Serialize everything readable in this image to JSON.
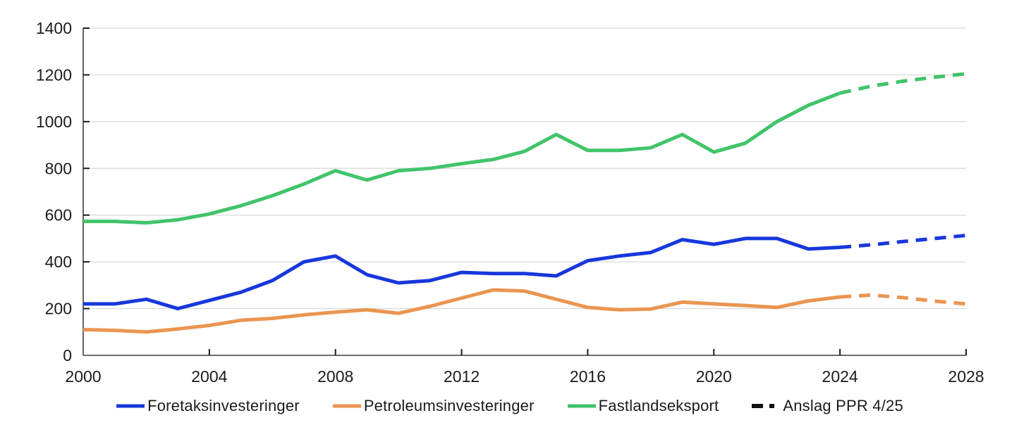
{
  "chart_data": {
    "type": "line",
    "title": "",
    "xlabel": "",
    "ylabel": "",
    "xlim": [
      2000,
      2028
    ],
    "ylim": [
      0,
      1400
    ],
    "x_ticks": [
      2000,
      2004,
      2008,
      2012,
      2016,
      2020,
      2024,
      2028
    ],
    "y_ticks": [
      0,
      200,
      400,
      600,
      800,
      1000,
      1200,
      1400
    ],
    "grid": true,
    "legend_position": "bottom",
    "years_start": 2000,
    "forecast_years_start": 2024,
    "forecast_years_end": 2028,
    "series": [
      {
        "name": "Foretaksinvesteringer",
        "color": "#1737dc",
        "values": [
          220,
          220,
          240,
          200,
          235,
          270,
          320,
          400,
          425,
          345,
          310,
          320,
          355,
          350,
          350,
          340,
          405,
          425,
          440,
          495,
          475,
          500,
          500,
          455,
          462
        ],
        "forecast": [
          462,
          473,
          487,
          500,
          513
        ]
      },
      {
        "name": "Petroleumsinvesteringer",
        "color": "#ea9551",
        "values": [
          110,
          107,
          100,
          113,
          128,
          150,
          158,
          173,
          185,
          195,
          180,
          210,
          245,
          280,
          275,
          240,
          205,
          195,
          198,
          228,
          220,
          213,
          205,
          233,
          250
        ],
        "forecast": [
          250,
          258,
          247,
          232,
          220
        ]
      },
      {
        "name": "Fastlandseksport",
        "color": "#41c46a",
        "values": [
          573,
          573,
          567,
          580,
          605,
          640,
          683,
          733,
          790,
          750,
          790,
          800,
          820,
          838,
          873,
          945,
          877,
          877,
          888,
          945,
          870,
          908,
          1000,
          1070,
          1122
        ],
        "forecast": [
          1122,
          1152,
          1173,
          1190,
          1205
        ]
      }
    ],
    "forecast_legend_label": "Anslag PPR 4/25",
    "forecast_legend_color": "#111111",
    "axis_color": "#3d3d3d",
    "gridline_color": "#d8d8d8",
    "text_color": "#1b1b1b"
  }
}
